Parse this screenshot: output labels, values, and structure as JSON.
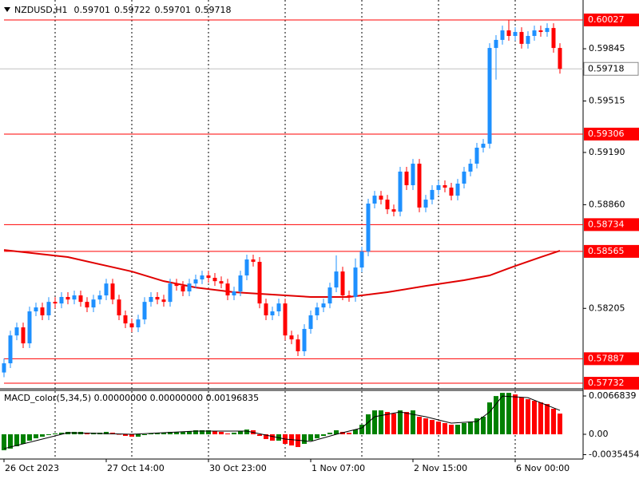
{
  "chart_data": [
    {
      "type": "candlestick",
      "symbol": "NZDUSD,H1",
      "quote": [
        0.59701,
        0.59722,
        0.59701,
        0.59718
      ],
      "up_color": "#1e90ff",
      "down_color": "#ff0000",
      "ylim": [
        0.57697,
        0.60153
      ],
      "yticks": [
        0.59845,
        0.59515,
        {
          "value": 0.5919,
          "label": "0.59190"
        },
        {
          "value": 0.5886,
          "label": "0.58860"
        },
        0.58205
      ],
      "levels": {
        "values": [
          0.60027,
          0.59306,
          0.58734,
          0.58565,
          0.57887,
          0.57732
        ],
        "color": "#ff0000"
      },
      "current_price": 0.59718,
      "ma": {
        "color": "#e00000",
        "x": [
          0,
          10,
          20,
          25,
          30,
          36,
          42,
          48,
          54,
          60,
          66,
          72,
          76,
          80,
          84,
          87
        ],
        "values": [
          0.58574,
          0.58529,
          0.58438,
          0.58377,
          0.58337,
          0.58307,
          0.58292,
          0.58277,
          0.58277,
          0.58307,
          0.58347,
          0.58383,
          0.58413,
          0.58473,
          0.58529,
          0.58569
        ]
      },
      "ohlc": [
        [
          0.578,
          0.57888,
          0.5777,
          0.57858
        ],
        [
          0.57858,
          0.58064,
          0.57828,
          0.58034
        ],
        [
          0.58034,
          0.58115,
          0.58004,
          0.58085
        ],
        [
          0.58085,
          0.58115,
          0.57954,
          0.57984
        ],
        [
          0.57984,
          0.58216,
          0.57954,
          0.58186
        ],
        [
          0.58186,
          0.58241,
          0.58156,
          0.58211
        ],
        [
          0.58211,
          0.58241,
          0.58131,
          0.58161
        ],
        [
          0.58161,
          0.58276,
          0.58131,
          0.58246
        ],
        [
          0.58246,
          0.58276,
          0.58206,
          0.58236
        ],
        [
          0.58236,
          0.58307,
          0.58206,
          0.58277
        ],
        [
          0.58277,
          0.58307,
          0.58231,
          0.58261
        ],
        [
          0.58261,
          0.58317,
          0.58231,
          0.58287
        ],
        [
          0.58287,
          0.58317,
          0.58216,
          0.58246
        ],
        [
          0.58246,
          0.58276,
          0.58181,
          0.58211
        ],
        [
          0.58211,
          0.58291,
          0.58181,
          0.58261
        ],
        [
          0.58261,
          0.58317,
          0.58231,
          0.58287
        ],
        [
          0.58287,
          0.58392,
          0.58257,
          0.58362
        ],
        [
          0.58362,
          0.58392,
          0.58231,
          0.58261
        ],
        [
          0.58261,
          0.58291,
          0.58131,
          0.58161
        ],
        [
          0.58161,
          0.58191,
          0.5808,
          0.5811
        ],
        [
          0.5811,
          0.5814,
          0.58055,
          0.58085
        ],
        [
          0.58085,
          0.58165,
          0.58055,
          0.58135
        ],
        [
          0.58135,
          0.58276,
          0.58105,
          0.58246
        ],
        [
          0.58246,
          0.58307,
          0.58216,
          0.58277
        ],
        [
          0.58277,
          0.58307,
          0.58231,
          0.58261
        ],
        [
          0.58261,
          0.58291,
          0.58216,
          0.58246
        ],
        [
          0.58246,
          0.58392,
          0.58216,
          0.58362
        ],
        [
          0.58362,
          0.58392,
          0.58317,
          0.58347
        ],
        [
          0.58347,
          0.58377,
          0.58282,
          0.58312
        ],
        [
          0.58312,
          0.58392,
          0.58282,
          0.58362
        ],
        [
          0.58362,
          0.58418,
          0.58332,
          0.58388
        ],
        [
          0.58388,
          0.58443,
          0.58358,
          0.58413
        ],
        [
          0.58413,
          0.58443,
          0.58368,
          0.58398
        ],
        [
          0.58398,
          0.58428,
          0.58347,
          0.58377
        ],
        [
          0.58377,
          0.58407,
          0.58332,
          0.58362
        ],
        [
          0.58362,
          0.58392,
          0.58257,
          0.58287
        ],
        [
          0.58287,
          0.58342,
          0.58257,
          0.58312
        ],
        [
          0.58312,
          0.58443,
          0.58282,
          0.58413
        ],
        [
          0.58413,
          0.58544,
          0.58383,
          0.58514
        ],
        [
          0.58514,
          0.58544,
          0.58469,
          0.58499
        ],
        [
          0.58499,
          0.58529,
          0.58206,
          0.58236
        ],
        [
          0.58236,
          0.58266,
          0.58131,
          0.58161
        ],
        [
          0.58161,
          0.58216,
          0.58131,
          0.58186
        ],
        [
          0.58186,
          0.58266,
          0.58156,
          0.58236
        ],
        [
          0.58236,
          0.58266,
          0.58004,
          0.58034
        ],
        [
          0.58034,
          0.58064,
          0.57979,
          0.58009
        ],
        [
          0.58009,
          0.58039,
          0.57904,
          0.57934
        ],
        [
          0.57934,
          0.58105,
          0.57904,
          0.58075
        ],
        [
          0.58075,
          0.58191,
          0.58045,
          0.58161
        ],
        [
          0.58161,
          0.58241,
          0.58131,
          0.58211
        ],
        [
          0.58211,
          0.58266,
          0.58181,
          0.58236
        ],
        [
          0.58236,
          0.58367,
          0.58206,
          0.58337
        ],
        [
          0.58337,
          0.5854,
          0.58307,
          0.58438
        ],
        [
          0.58438,
          0.58468,
          0.58257,
          0.58287
        ],
        [
          0.58287,
          0.58317,
          0.58247,
          0.58277
        ],
        [
          0.58277,
          0.5852,
          0.58247,
          0.58463
        ],
        [
          0.58463,
          0.58594,
          0.58433,
          0.58564
        ],
        [
          0.58564,
          0.58897,
          0.58534,
          0.58867
        ],
        [
          0.58867,
          0.58947,
          0.58837,
          0.58917
        ],
        [
          0.58917,
          0.58947,
          0.58862,
          0.58892
        ],
        [
          0.58892,
          0.58922,
          0.58801,
          0.58831
        ],
        [
          0.58831,
          0.58861,
          0.58786,
          0.58816
        ],
        [
          0.58816,
          0.59099,
          0.58786,
          0.59069
        ],
        [
          0.59069,
          0.59099,
          0.58953,
          0.58983
        ],
        [
          0.58983,
          0.59149,
          0.58953,
          0.59119
        ],
        [
          0.59119,
          0.59149,
          0.58812,
          0.58842
        ],
        [
          0.58842,
          0.58922,
          0.58812,
          0.58892
        ],
        [
          0.58892,
          0.58983,
          0.58862,
          0.58953
        ],
        [
          0.58953,
          0.59013,
          0.58923,
          0.58983
        ],
        [
          0.58983,
          0.59013,
          0.58938,
          0.58968
        ],
        [
          0.58968,
          0.58998,
          0.58887,
          0.58917
        ],
        [
          0.58917,
          0.59023,
          0.58887,
          0.58993
        ],
        [
          0.58993,
          0.59099,
          0.58963,
          0.59069
        ],
        [
          0.59069,
          0.59149,
          0.59039,
          0.59119
        ],
        [
          0.59119,
          0.5925,
          0.59089,
          0.5922
        ],
        [
          0.5922,
          0.59275,
          0.5919,
          0.59245
        ],
        [
          0.59245,
          0.5988,
          0.59215,
          0.5985
        ],
        [
          0.5985,
          0.59931,
          0.5965,
          0.59901
        ],
        [
          0.59901,
          0.59991,
          0.59871,
          0.59961
        ],
        [
          0.59961,
          0.60027,
          0.59896,
          0.59926
        ],
        [
          0.59926,
          0.59981,
          0.59896,
          0.59951
        ],
        [
          0.59951,
          0.59981,
          0.59846,
          0.59876
        ],
        [
          0.59876,
          0.59956,
          0.59846,
          0.59926
        ],
        [
          0.59926,
          0.59991,
          0.59896,
          0.59961
        ],
        [
          0.59961,
          0.59991,
          0.59921,
          0.59951
        ],
        [
          0.59951,
          0.60006,
          0.59921,
          0.59976
        ],
        [
          0.59976,
          0.60006,
          0.5982,
          0.5985
        ],
        [
          0.5985,
          0.5988,
          0.59688,
          0.59718
        ]
      ]
    },
    {
      "type": "macd",
      "title": "MACD_color(5,34,5) 0.00000000 0.00000000 0.00196835",
      "up_color": "#008000",
      "down_color": "#ff0000",
      "ylim": [
        -0.00432,
        0.00766
      ],
      "yticks": [
        0.0066839,
        {
          "value": 0,
          "label": "0.00"
        },
        -0.0035454
      ],
      "categories": [
        "26 Oct 2023",
        null,
        null,
        null,
        null,
        null,
        null,
        null,
        null,
        null,
        null,
        null,
        null,
        null,
        null,
        null,
        "27 Oct 14:00",
        null,
        null,
        null,
        null,
        null,
        null,
        null,
        null,
        null,
        null,
        null,
        null,
        null,
        null,
        null,
        "30 Oct 23:00",
        null,
        null,
        null,
        null,
        null,
        null,
        null,
        null,
        null,
        null,
        null,
        null,
        null,
        null,
        null,
        "1 Nov 07:00",
        null,
        null,
        null,
        null,
        null,
        null,
        null,
        null,
        null,
        null,
        null,
        null,
        null,
        null,
        null,
        "2 Nov 15:00",
        null,
        null,
        null,
        null,
        null,
        null,
        null,
        null,
        null,
        null,
        null,
        null,
        null,
        null,
        null,
        "6 Nov 00:00",
        null,
        null,
        null,
        null,
        null,
        null,
        null
      ],
      "values": [
        -0.00278,
        -0.0025,
        -0.00209,
        -0.00167,
        -0.00111,
        -0.0007,
        -0.00042,
        -0.00014,
        0.00014,
        0.00028,
        0.00042,
        0.00042,
        0.00042,
        0.00028,
        0.00028,
        0.00028,
        0.00042,
        0.00028,
        0,
        -0.00028,
        -0.00042,
        -0.00042,
        -0.00014,
        0.00014,
        0.00028,
        0.00028,
        0.00042,
        0.00042,
        0.00042,
        0.00056,
        0.0007,
        0.0007,
        0.0007,
        0.00056,
        0.00042,
        0.00014,
        0.00028,
        0.00056,
        0.00083,
        0.0007,
        -0.00028,
        -0.00083,
        -0.00111,
        -0.00111,
        -0.00167,
        -0.00195,
        -0.00222,
        -0.00167,
        -0.00111,
        -0.0007,
        -0.00028,
        0.00028,
        0.0007,
        0.00042,
        0.00028,
        0.00083,
        0.00167,
        0.00348,
        0.00417,
        0.00417,
        0.00389,
        0.00361,
        0.00417,
        0.00389,
        0.00417,
        0.00306,
        0.00278,
        0.0025,
        0.00222,
        0.00195,
        0.00167,
        0.00167,
        0.00195,
        0.00222,
        0.00278,
        0.00306,
        0.00556,
        0.00667,
        0.00723,
        0.00723,
        0.00695,
        0.00639,
        0.00612,
        0.00584,
        0.00556,
        0.00528,
        0.00445,
        0.00361
      ],
      "signal": {
        "color": "#000000",
        "x": [
          0,
          5,
          10,
          20,
          30,
          38,
          44,
          48,
          52,
          56,
          58,
          62,
          66,
          70,
          74,
          76,
          78,
          82,
          87
        ],
        "values": [
          -0.0025,
          -0.00111,
          0.00028,
          0,
          0.00056,
          0.00056,
          -0.00083,
          -0.00125,
          0,
          0.00111,
          0.00306,
          0.00389,
          0.00306,
          0.00195,
          0.00222,
          0.00389,
          0.00667,
          0.00639,
          0.00417
        ]
      }
    }
  ]
}
